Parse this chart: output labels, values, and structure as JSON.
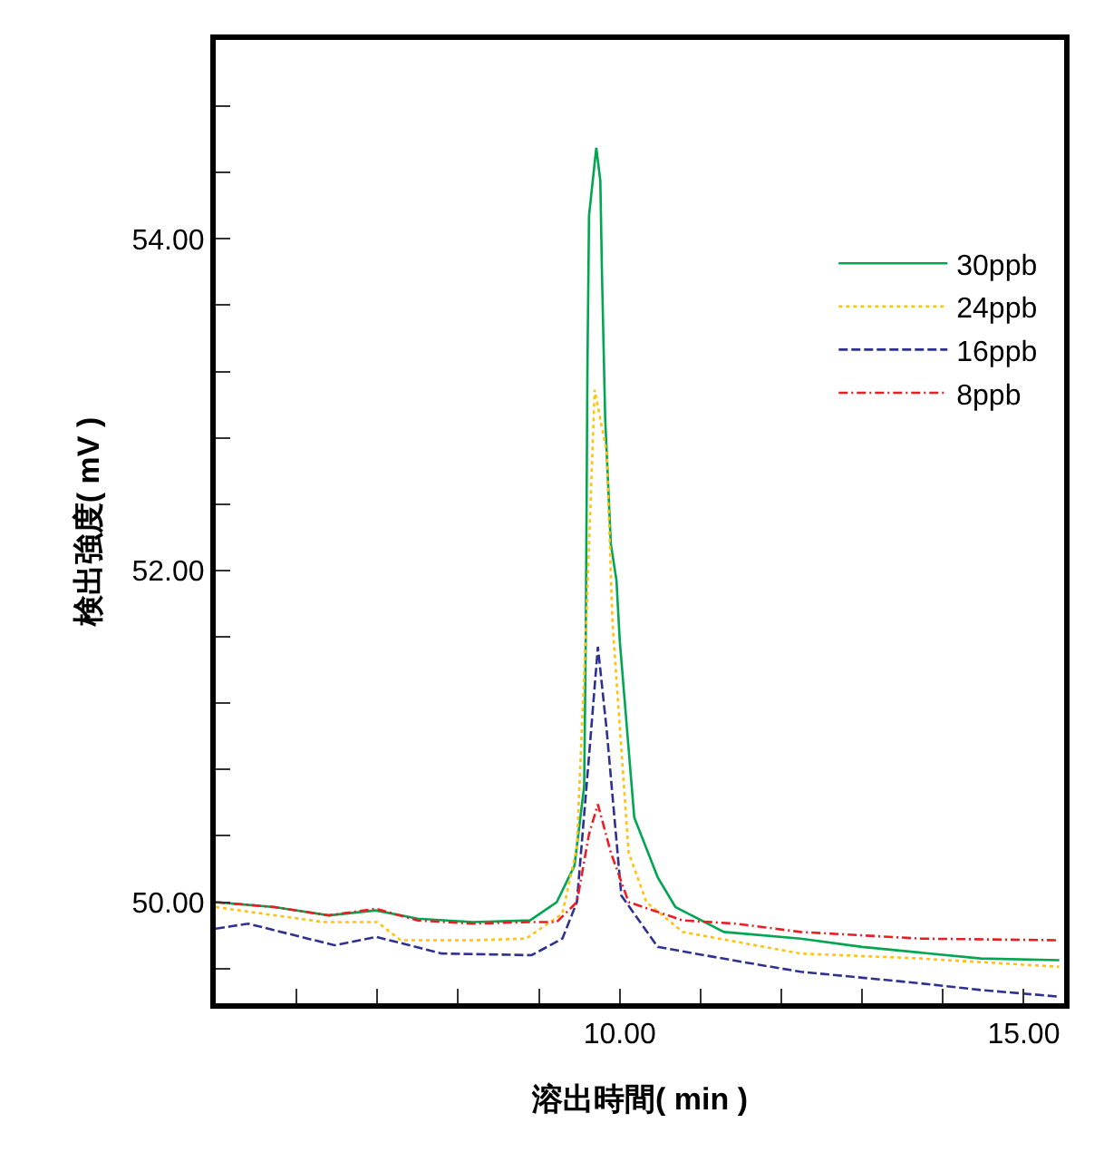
{
  "chart_data": {
    "type": "line",
    "xlabel": "溶出時間( min )",
    "ylabel": "検出強度( mV )",
    "xlim": [
      5.0,
      15.5
    ],
    "ylim": [
      49.39,
      55.2
    ],
    "xticks": [
      {
        "value": 6,
        "label": null
      },
      {
        "value": 7,
        "label": null
      },
      {
        "value": 8,
        "label": null
      },
      {
        "value": 9,
        "label": null
      },
      {
        "value": 10,
        "label": "10.00"
      },
      {
        "value": 11,
        "label": null
      },
      {
        "value": 12,
        "label": null
      },
      {
        "value": 13,
        "label": null
      },
      {
        "value": 14,
        "label": null
      },
      {
        "value": 15,
        "label": "15.00"
      }
    ],
    "yticks": [
      {
        "value": 49.6,
        "label": null
      },
      {
        "value": 50,
        "label": "50.00"
      },
      {
        "value": 50.4,
        "label": null
      },
      {
        "value": 50.8,
        "label": null
      },
      {
        "value": 51.2,
        "label": null
      },
      {
        "value": 51.6,
        "label": null
      },
      {
        "value": 52,
        "label": "52.00"
      },
      {
        "value": 52.4,
        "label": null
      },
      {
        "value": 52.8,
        "label": null
      },
      {
        "value": 53.2,
        "label": null
      },
      {
        "value": 53.6,
        "label": null
      },
      {
        "value": 54,
        "label": "54.00"
      },
      {
        "value": 54.4,
        "label": null
      },
      {
        "value": 54.8,
        "label": null
      }
    ],
    "grid": false,
    "legend": "top right",
    "marker": "none",
    "series": [
      {
        "name": "30ppb",
        "color": "#00a651",
        "line_style": "solid",
        "x": [
          5.0,
          5.73,
          6.4,
          6.98,
          7.5,
          8.18,
          8.89,
          9.22,
          9.44,
          9.56,
          9.58,
          9.6,
          9.62,
          9.71,
          9.76,
          9.78,
          9.82,
          9.89,
          9.96,
          10.0,
          10.18,
          10.47,
          10.69,
          11.29,
          12.24,
          13.0,
          14.47,
          15.44
        ],
        "values": [
          50.0,
          49.97,
          49.92,
          49.95,
          49.9,
          49.88,
          49.89,
          50.0,
          50.22,
          50.7,
          51.61,
          53.2,
          54.14,
          54.55,
          54.35,
          53.8,
          52.92,
          52.16,
          51.94,
          51.58,
          50.51,
          50.15,
          49.97,
          49.82,
          49.78,
          49.73,
          49.66,
          49.65
        ]
      },
      {
        "name": "24ppb",
        "color": "#ffc20e",
        "line_style": "dotted",
        "x": [
          5.0,
          6.33,
          7.0,
          7.29,
          8.18,
          8.84,
          9.29,
          9.47,
          9.58,
          9.69,
          9.84,
          9.91,
          10.11,
          10.33,
          10.78,
          12.24,
          13.73,
          15.44
        ],
        "values": [
          49.97,
          49.88,
          49.88,
          49.77,
          49.77,
          49.78,
          49.93,
          50.33,
          51.61,
          53.09,
          52.71,
          51.69,
          50.3,
          50.0,
          49.82,
          49.69,
          49.66,
          49.61
        ]
      },
      {
        "name": "16ppb",
        "color": "#2e3192",
        "line_style": "dashed",
        "x": [
          5.0,
          5.4,
          6.47,
          6.99,
          7.8,
          8.91,
          9.29,
          9.47,
          9.62,
          9.73,
          9.84,
          10.02,
          10.47,
          11.51,
          12.24,
          13.73,
          14.47,
          15.44
        ],
        "values": [
          49.84,
          49.87,
          49.74,
          49.79,
          49.69,
          49.68,
          49.78,
          50.0,
          50.88,
          51.54,
          51.03,
          50.04,
          49.73,
          49.64,
          49.58,
          49.51,
          49.47,
          49.43
        ]
      },
      {
        "name": "8ppb",
        "color": "#ed1c24",
        "line_style": "dashdot",
        "x": [
          5.0,
          5.73,
          6.4,
          6.98,
          7.5,
          8.18,
          8.89,
          9.22,
          9.47,
          9.62,
          9.73,
          9.89,
          10.11,
          10.78,
          11.44,
          12.24,
          13.73,
          15.44
        ],
        "values": [
          50.0,
          49.97,
          49.92,
          49.96,
          49.89,
          49.87,
          49.88,
          49.88,
          50.0,
          50.41,
          50.59,
          50.3,
          50.0,
          49.89,
          49.87,
          49.82,
          49.78,
          49.77
        ]
      }
    ]
  }
}
